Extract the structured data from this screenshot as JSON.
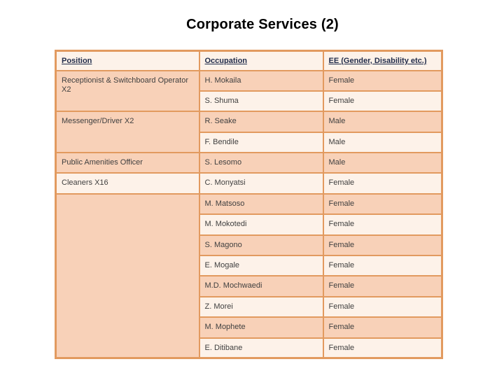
{
  "slide": {
    "title": "Corporate Services (2)"
  },
  "colors": {
    "table_border": "#e29a5f",
    "row_dark_bg": "#f8d1b8",
    "row_light_bg": "#fdf2e9",
    "header_text": "#1f2b4a",
    "body_text": "#404040",
    "title_text": "#000000"
  },
  "table": {
    "headers": [
      "Position",
      "Occupation",
      "EE (Gender, Disability etc.)"
    ],
    "positions": [
      {
        "label": "Receptionist & Switchboard Operator X2",
        "rowspan": 2,
        "shade": "dark"
      },
      {
        "label": "Messenger/Driver X2",
        "rowspan": 2,
        "shade": "dark"
      },
      {
        "label": "Public Amenities Officer",
        "rowspan": 1,
        "shade": "dark"
      },
      {
        "label": "Cleaners X16",
        "rowspan": 1,
        "shade": "light"
      },
      {
        "label": "",
        "rowspan": 8,
        "shade": "dark"
      }
    ],
    "rows": [
      {
        "occupation": "H. Mokaila",
        "ee": "Female",
        "shade": "dark"
      },
      {
        "occupation": "S. Shuma",
        "ee": "Female",
        "shade": "light"
      },
      {
        "occupation": "R. Seake",
        "ee": "Male",
        "shade": "dark"
      },
      {
        "occupation": "F. Bendile",
        "ee": "Male",
        "shade": "light"
      },
      {
        "occupation": "S. Lesomo",
        "ee": "Male",
        "shade": "dark"
      },
      {
        "occupation": "C. Monyatsi",
        "ee": "Female",
        "shade": "light"
      },
      {
        "occupation": "M. Matsoso",
        "ee": "Female",
        "shade": "dark"
      },
      {
        "occupation": "M. Mokotedi",
        "ee": "Female",
        "shade": "light"
      },
      {
        "occupation": "S. Magono",
        "ee": "Female",
        "shade": "dark"
      },
      {
        "occupation": "E. Mogale",
        "ee": "Female",
        "shade": "light"
      },
      {
        "occupation": "M.D. Mochwaedi",
        "ee": "Female",
        "shade": "dark"
      },
      {
        "occupation": "Z. Morei",
        "ee": "Female",
        "shade": "light"
      },
      {
        "occupation": "M. Mophete",
        "ee": "Female",
        "shade": "dark"
      },
      {
        "occupation": "E. Ditibane",
        "ee": "Female",
        "shade": "light"
      }
    ]
  }
}
